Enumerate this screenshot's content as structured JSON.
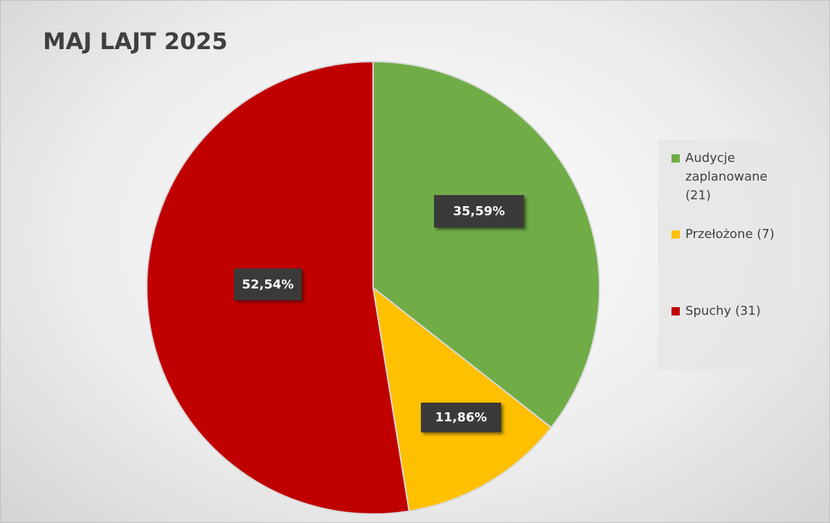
{
  "chart_data": {
    "type": "pie",
    "title": "MAJ LAJT 2025",
    "slices": [
      {
        "label": "Audycje zaplanowane (21)",
        "label_lines": [
          "Audycje",
          "zaplanowane",
          "(21)"
        ],
        "value": 21,
        "percent_label": "35,59%",
        "color": "#70AD47"
      },
      {
        "label": "Przełożone (7)",
        "label_lines": [
          "Przełożone (7)"
        ],
        "value": 7,
        "percent_label": "11,86%",
        "color": "#FFC000"
      },
      {
        "label": "Spuchy (31)",
        "label_lines": [
          "Spuchy (31)"
        ],
        "value": 31,
        "percent_label": "52,54%",
        "color": "#C00000"
      }
    ],
    "start_angle": "top, clockwise",
    "legend_position": "right"
  }
}
